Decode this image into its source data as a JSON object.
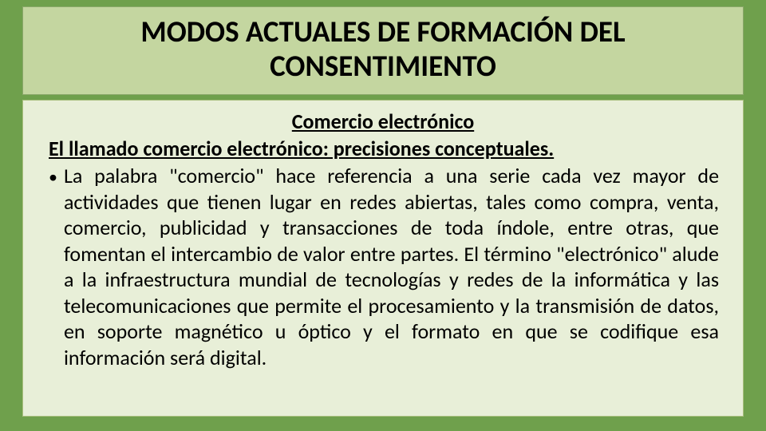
{
  "slide": {
    "background_color": "#6fa04c",
    "title_box": {
      "background_color": "#c4d6a0",
      "border_color": "#8aa86a",
      "text": "MODOS ACTUALES DE FORMACIÓN DEL CONSENTIMIENTO",
      "font_size_pt": 37,
      "font_weight": 700,
      "text_color": "#000000",
      "text_align": "center"
    },
    "content_box": {
      "background_color": "#e8efd8",
      "border_color": "#a9c07f",
      "subtitle": {
        "text": "Comercio electrónico",
        "font_size_pt": 26,
        "font_weight": 700,
        "underline": true,
        "text_align": "center",
        "text_color": "#000000"
      },
      "subheading": {
        "text": "El llamado comercio electrónico: precisiones conceptuales.",
        "font_size_pt": 26,
        "font_weight": 700,
        "underline": true,
        "text_align": "left",
        "text_color": "#000000"
      },
      "bullet": {
        "marker": "•",
        "text": "La palabra \"comercio\" hace referencia a una serie cada vez mayor de actividades que tienen lugar en redes abiertas, tales como compra, venta, comercio, publicidad y transacciones de toda índole, entre otras, que fomentan el intercambio de valor entre partes. El término \"electrónico\" alude a la infraestructura mundial de tecnologías y redes de la informática y las telecomunicaciones que permite el procesamiento y la transmisión de datos, en soporte magnético u óptico y el formato en que se codifique esa información  será digital.",
        "font_size_pt": 26,
        "font_weight": 400,
        "text_align": "justify",
        "text_color": "#000000",
        "line_height": 1.25
      }
    }
  }
}
